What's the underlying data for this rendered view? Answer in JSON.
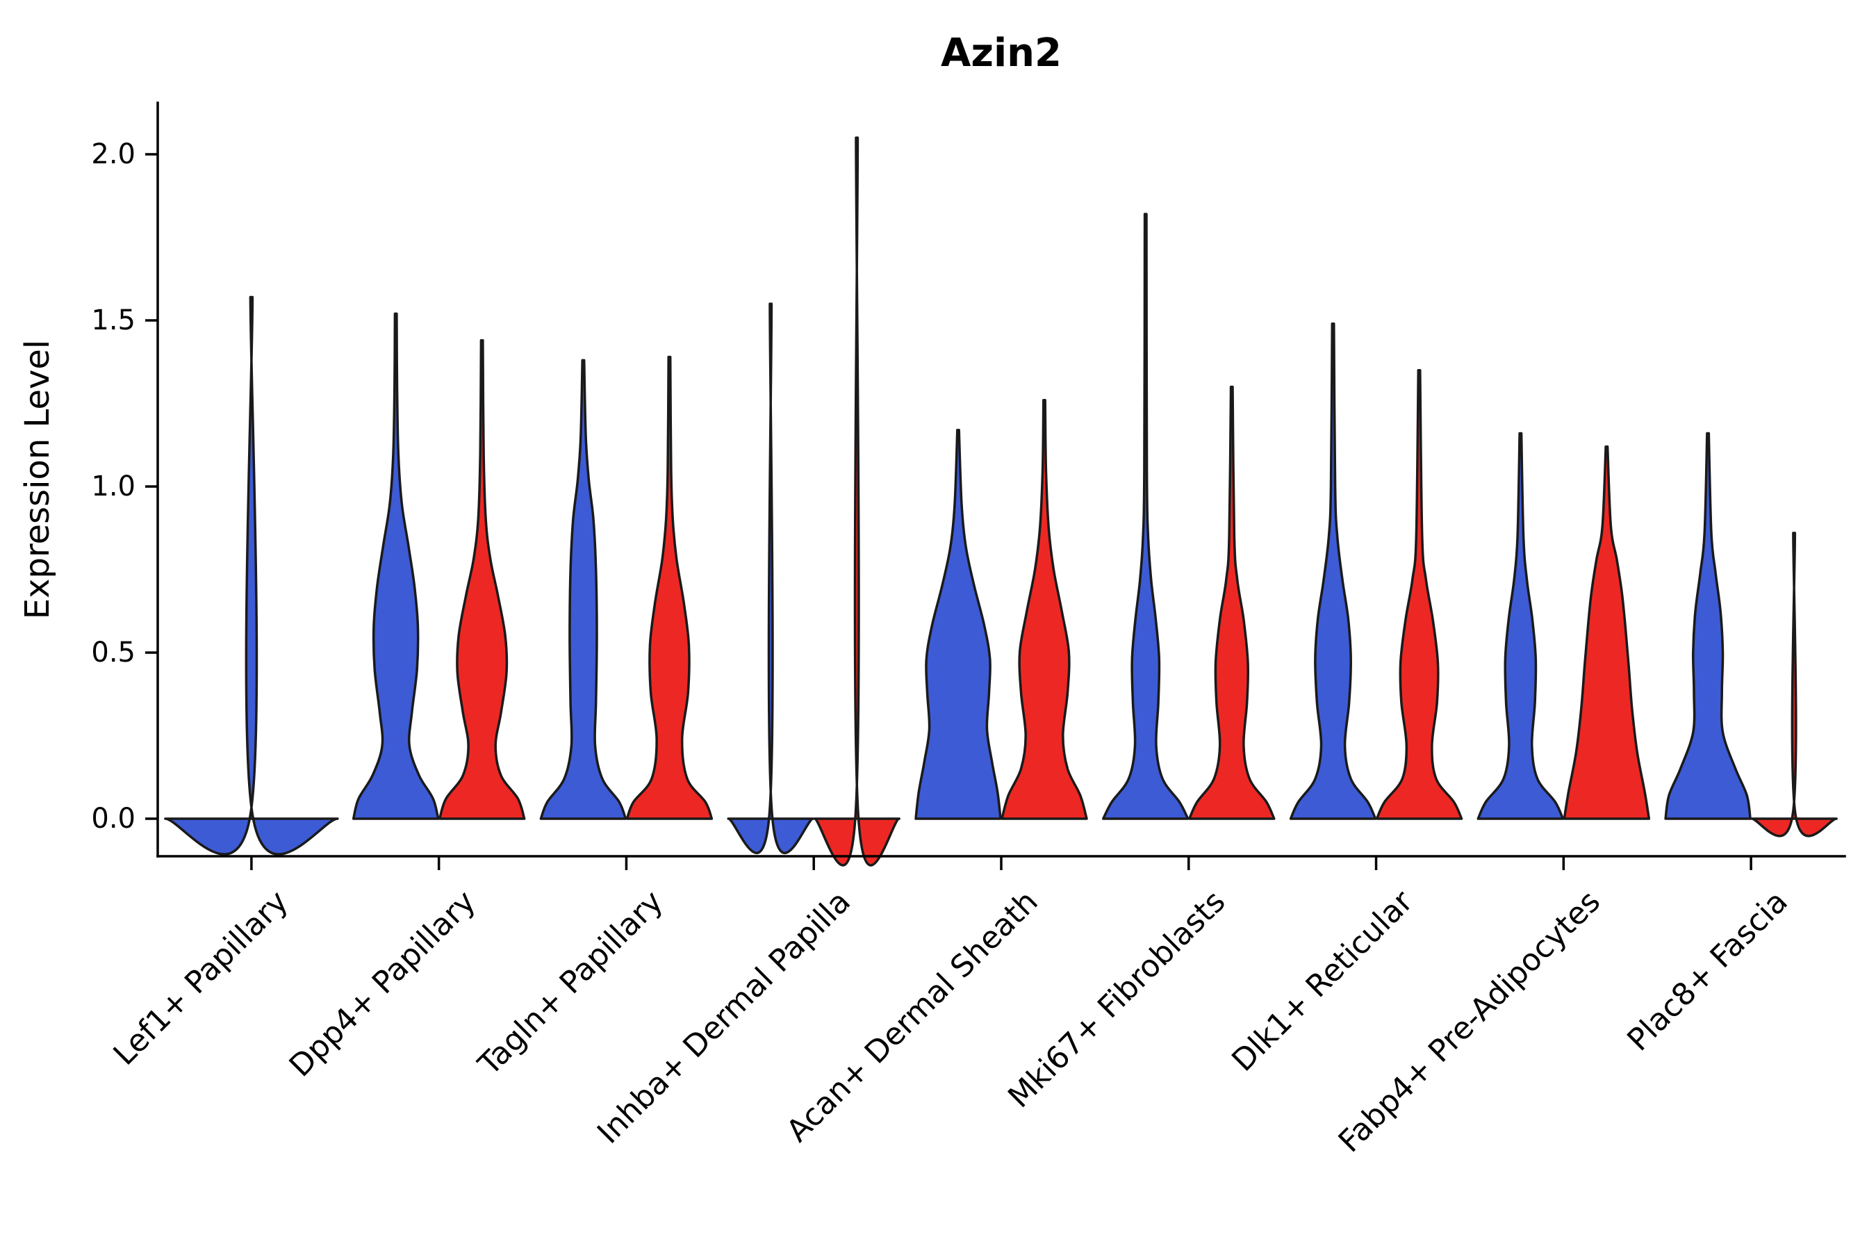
{
  "chart_data": {
    "type": "violin",
    "title": "Azin2",
    "ylabel": "Expression Level",
    "xlabel": "",
    "ylim": [
      -0.08,
      2.26
    ],
    "yticks": [
      0.0,
      0.5,
      1.0,
      1.5,
      2.0
    ],
    "ytick_labels": [
      "0.0",
      "0.5",
      "1.0",
      "1.5",
      "2.0"
    ],
    "grid": false,
    "legend": "none",
    "categories": [
      "Lef1+ Papillary",
      "Dpp4+ Papillary",
      "Tagln+ Papillary",
      "Inhba+ Dermal Papilla",
      "Acan+ Dermal Sheath",
      "Mki67+ Fibroblasts",
      "Dlk1+ Reticular",
      "Fabp4+ Pre-Adipocytes",
      "Plac8+ Fascia"
    ],
    "groups": [
      {
        "name": "blue",
        "color": "#3D5BD5"
      },
      {
        "name": "red",
        "color": "#ED2824"
      }
    ],
    "violins": [
      {
        "category_index": 0,
        "group": "blue",
        "span": "full",
        "max": 1.57,
        "profile": [
          [
            0,
            1.0
          ],
          [
            0.012,
            0.012
          ],
          [
            1.57,
            0.012
          ]
        ]
      },
      {
        "category_index": 1,
        "group": "blue",
        "max": 1.52,
        "profile": [
          [
            0,
            1.0
          ],
          [
            0.06,
            0.88
          ],
          [
            0.13,
            0.55
          ],
          [
            0.22,
            0.32
          ],
          [
            0.32,
            0.38
          ],
          [
            0.45,
            0.5
          ],
          [
            0.58,
            0.52
          ],
          [
            0.7,
            0.44
          ],
          [
            0.82,
            0.3
          ],
          [
            0.95,
            0.14
          ],
          [
            1.1,
            0.06
          ],
          [
            1.3,
            0.03
          ],
          [
            1.52,
            0.02
          ]
        ]
      },
      {
        "category_index": 1,
        "group": "red",
        "max": 1.44,
        "profile": [
          [
            0,
            1.0
          ],
          [
            0.06,
            0.85
          ],
          [
            0.13,
            0.45
          ],
          [
            0.22,
            0.32
          ],
          [
            0.32,
            0.45
          ],
          [
            0.44,
            0.58
          ],
          [
            0.55,
            0.55
          ],
          [
            0.67,
            0.38
          ],
          [
            0.78,
            0.2
          ],
          [
            0.9,
            0.09
          ],
          [
            1.1,
            0.04
          ],
          [
            1.44,
            0.02
          ]
        ]
      },
      {
        "category_index": 2,
        "group": "blue",
        "max": 1.38,
        "profile": [
          [
            0,
            1.0
          ],
          [
            0.05,
            0.85
          ],
          [
            0.12,
            0.45
          ],
          [
            0.22,
            0.28
          ],
          [
            0.35,
            0.3
          ],
          [
            0.55,
            0.32
          ],
          [
            0.75,
            0.3
          ],
          [
            0.9,
            0.24
          ],
          [
            1.02,
            0.13
          ],
          [
            1.15,
            0.06
          ],
          [
            1.38,
            0.02
          ]
        ]
      },
      {
        "category_index": 2,
        "group": "red",
        "max": 1.39,
        "profile": [
          [
            0,
            1.0
          ],
          [
            0.05,
            0.85
          ],
          [
            0.12,
            0.42
          ],
          [
            0.24,
            0.3
          ],
          [
            0.38,
            0.44
          ],
          [
            0.52,
            0.46
          ],
          [
            0.65,
            0.34
          ],
          [
            0.78,
            0.17
          ],
          [
            0.9,
            0.08
          ],
          [
            1.05,
            0.04
          ],
          [
            1.39,
            0.02
          ]
        ]
      },
      {
        "category_index": 3,
        "group": "blue",
        "max": 1.55,
        "profile": [
          [
            0,
            1.0
          ],
          [
            0.015,
            0.03
          ],
          [
            1.55,
            0.02
          ]
        ]
      },
      {
        "category_index": 3,
        "group": "red",
        "max": 2.05,
        "profile": [
          [
            0,
            1.0
          ],
          [
            0.015,
            0.03
          ],
          [
            2.05,
            0.02
          ]
        ]
      },
      {
        "category_index": 4,
        "group": "blue",
        "max": 1.17,
        "profile": [
          [
            0,
            1.0
          ],
          [
            0.08,
            0.93
          ],
          [
            0.17,
            0.8
          ],
          [
            0.27,
            0.68
          ],
          [
            0.38,
            0.73
          ],
          [
            0.48,
            0.75
          ],
          [
            0.58,
            0.62
          ],
          [
            0.7,
            0.38
          ],
          [
            0.82,
            0.18
          ],
          [
            0.95,
            0.08
          ],
          [
            1.17,
            0.02
          ]
        ]
      },
      {
        "category_index": 4,
        "group": "red",
        "max": 1.26,
        "profile": [
          [
            0,
            1.0
          ],
          [
            0.07,
            0.85
          ],
          [
            0.15,
            0.55
          ],
          [
            0.25,
            0.44
          ],
          [
            0.38,
            0.55
          ],
          [
            0.5,
            0.58
          ],
          [
            0.62,
            0.42
          ],
          [
            0.75,
            0.22
          ],
          [
            0.88,
            0.1
          ],
          [
            1.05,
            0.04
          ],
          [
            1.26,
            0.02
          ]
        ]
      },
      {
        "category_index": 5,
        "group": "blue",
        "max": 1.82,
        "profile": [
          [
            0,
            1.0
          ],
          [
            0.05,
            0.8
          ],
          [
            0.12,
            0.4
          ],
          [
            0.22,
            0.25
          ],
          [
            0.35,
            0.3
          ],
          [
            0.48,
            0.32
          ],
          [
            0.6,
            0.24
          ],
          [
            0.72,
            0.13
          ],
          [
            0.85,
            0.06
          ],
          [
            1.05,
            0.03
          ],
          [
            1.82,
            0.02
          ]
        ]
      },
      {
        "category_index": 5,
        "group": "red",
        "max": 1.3,
        "profile": [
          [
            0,
            1.0
          ],
          [
            0.05,
            0.82
          ],
          [
            0.12,
            0.42
          ],
          [
            0.22,
            0.28
          ],
          [
            0.35,
            0.36
          ],
          [
            0.47,
            0.38
          ],
          [
            0.6,
            0.28
          ],
          [
            0.72,
            0.13
          ],
          [
            0.85,
            0.06
          ],
          [
            1.3,
            0.02
          ]
        ]
      },
      {
        "category_index": 6,
        "group": "blue",
        "max": 1.49,
        "profile": [
          [
            0,
            1.0
          ],
          [
            0.05,
            0.82
          ],
          [
            0.12,
            0.42
          ],
          [
            0.22,
            0.28
          ],
          [
            0.35,
            0.38
          ],
          [
            0.48,
            0.42
          ],
          [
            0.6,
            0.36
          ],
          [
            0.72,
            0.22
          ],
          [
            0.85,
            0.1
          ],
          [
            1.0,
            0.05
          ],
          [
            1.49,
            0.02
          ]
        ]
      },
      {
        "category_index": 6,
        "group": "red",
        "max": 1.35,
        "profile": [
          [
            0,
            1.0
          ],
          [
            0.05,
            0.82
          ],
          [
            0.12,
            0.4
          ],
          [
            0.22,
            0.3
          ],
          [
            0.35,
            0.42
          ],
          [
            0.47,
            0.44
          ],
          [
            0.6,
            0.32
          ],
          [
            0.72,
            0.16
          ],
          [
            0.85,
            0.07
          ],
          [
            1.35,
            0.02
          ]
        ]
      },
      {
        "category_index": 7,
        "group": "blue",
        "max": 1.16,
        "profile": [
          [
            0,
            1.0
          ],
          [
            0.05,
            0.82
          ],
          [
            0.12,
            0.4
          ],
          [
            0.22,
            0.27
          ],
          [
            0.35,
            0.34
          ],
          [
            0.48,
            0.36
          ],
          [
            0.6,
            0.28
          ],
          [
            0.72,
            0.15
          ],
          [
            0.85,
            0.07
          ],
          [
            1.16,
            0.02
          ]
        ]
      },
      {
        "category_index": 7,
        "group": "red",
        "max": 1.12,
        "profile": [
          [
            0,
            1.0
          ],
          [
            0.08,
            0.9
          ],
          [
            0.2,
            0.72
          ],
          [
            0.33,
            0.6
          ],
          [
            0.46,
            0.52
          ],
          [
            0.58,
            0.44
          ],
          [
            0.68,
            0.36
          ],
          [
            0.78,
            0.24
          ],
          [
            0.88,
            0.1
          ],
          [
            1.12,
            0.02
          ]
        ]
      },
      {
        "category_index": 8,
        "group": "blue",
        "max": 1.16,
        "profile": [
          [
            0,
            1.0
          ],
          [
            0.07,
            0.92
          ],
          [
            0.15,
            0.65
          ],
          [
            0.26,
            0.35
          ],
          [
            0.38,
            0.33
          ],
          [
            0.5,
            0.35
          ],
          [
            0.62,
            0.3
          ],
          [
            0.74,
            0.18
          ],
          [
            0.86,
            0.08
          ],
          [
            1.16,
            0.02
          ]
        ]
      },
      {
        "category_index": 8,
        "group": "red",
        "max": 0.86,
        "profile": [
          [
            0,
            1.0
          ],
          [
            0.015,
            0.03
          ],
          [
            0.86,
            0.02
          ]
        ]
      }
    ]
  }
}
